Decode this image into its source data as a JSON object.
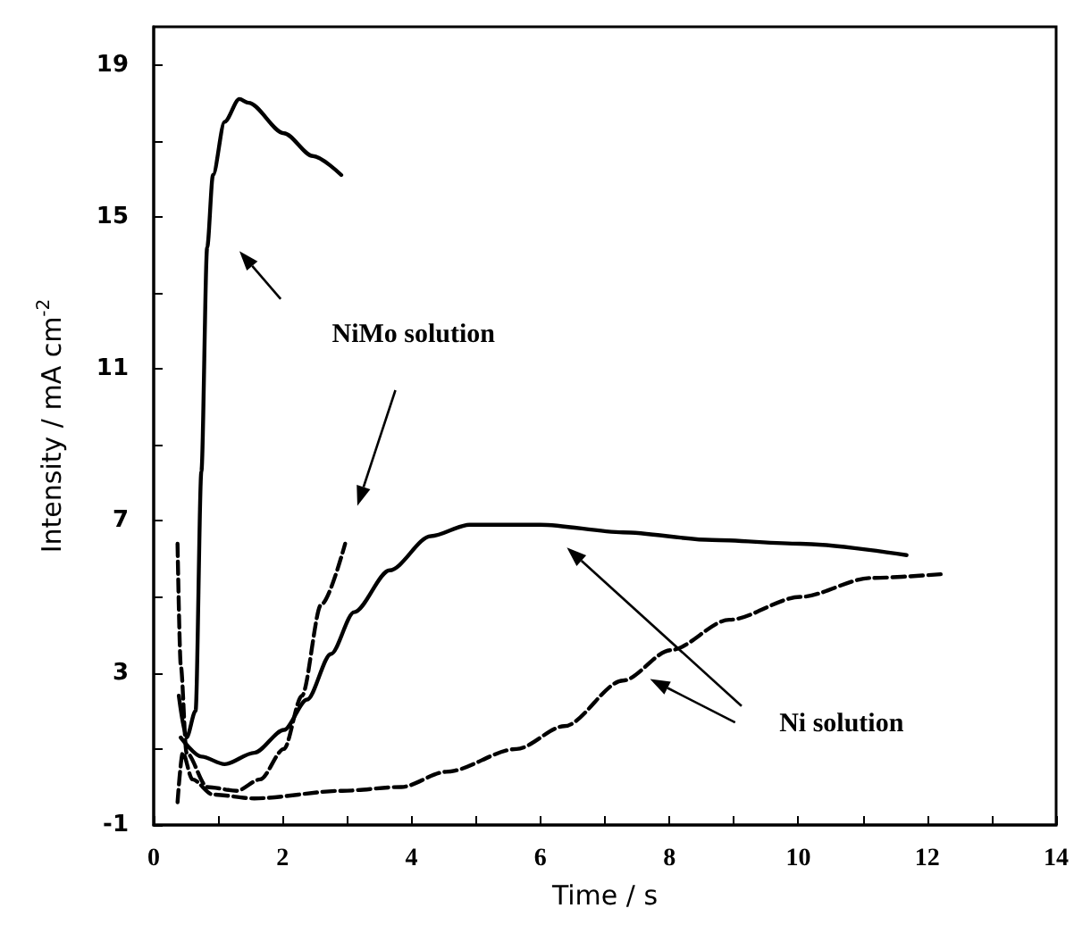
{
  "chart_data": {
    "type": "line",
    "xlabel": "Time / s",
    "ylabel": "Intensity / mA cm$^{-2}$",
    "xlim": [
      0,
      14
    ],
    "xticks": [
      0,
      {
        "value": 1,
        "label": null
      },
      2,
      {
        "value": 3,
        "label": null
      },
      4,
      {
        "value": 5,
        "label": null
      },
      6,
      {
        "value": 7,
        "label": null
      },
      8,
      {
        "value": 9,
        "label": null
      },
      10,
      {
        "value": 11,
        "label": null
      },
      12,
      {
        "value": 13,
        "label": null
      },
      14
    ],
    "ylim": [
      -1,
      20
    ],
    "yticks": [
      -1,
      {
        "value": 1,
        "label": null
      },
      3,
      {
        "value": 5,
        "label": null
      },
      7,
      {
        "value": 9,
        "label": null
      },
      11,
      {
        "value": 13,
        "label": null
      },
      15,
      {
        "value": 17,
        "label": null
      },
      19
    ],
    "marker": "none",
    "series": [
      {
        "color": "#000000",
        "line_style": "solid",
        "x": [
          0.39,
          0.51,
          0.65,
          0.74,
          0.83,
          0.92,
          1.1,
          1.33,
          1.47,
          2.02,
          2.47,
          2.91
        ],
        "values": [
          2.4,
          1.3,
          2.0,
          8.3,
          14.2,
          16.1,
          17.5,
          18.1,
          18.0,
          17.2,
          16.6,
          16.1
        ]
      },
      {
        "color": "#000000",
        "line_style": "dashed",
        "x": [
          0.37,
          0.42,
          0.51,
          0.83,
          1.29,
          1.65,
          2.02,
          2.3,
          2.6,
          2.97
        ],
        "values": [
          6.4,
          3.2,
          0.9,
          0.0,
          -0.1,
          0.2,
          1.0,
          2.4,
          4.8,
          6.4
        ]
      },
      {
        "color": "#000000",
        "line_style": "solid",
        "x": [
          0.42,
          0.74,
          1.1,
          1.56,
          2.02,
          2.38,
          2.75,
          3.11,
          3.66,
          4.3,
          4.9,
          5.45,
          6.0,
          7.28,
          8.66,
          10.03,
          11.68
        ],
        "values": [
          1.3,
          0.8,
          0.6,
          0.9,
          1.5,
          2.3,
          3.5,
          4.6,
          5.7,
          6.6,
          6.9,
          6.9,
          6.9,
          6.7,
          6.5,
          6.4,
          6.1
        ]
      },
      {
        "color": "#000000",
        "line_style": "dashed",
        "x": [
          0.37,
          0.45,
          0.6,
          0.92,
          1.56,
          2.93,
          3.84,
          4.54,
          5.63,
          6.37,
          7.28,
          8.02,
          8.93,
          10.03,
          11.13,
          12.23
        ],
        "values": [
          -0.4,
          0.9,
          0.2,
          -0.2,
          -0.3,
          -0.1,
          0.0,
          0.4,
          1.0,
          1.6,
          2.8,
          3.6,
          4.4,
          5.0,
          5.5,
          5.6
        ]
      }
    ],
    "annotations": [
      "NiMo solution",
      "Ni solution"
    ]
  }
}
